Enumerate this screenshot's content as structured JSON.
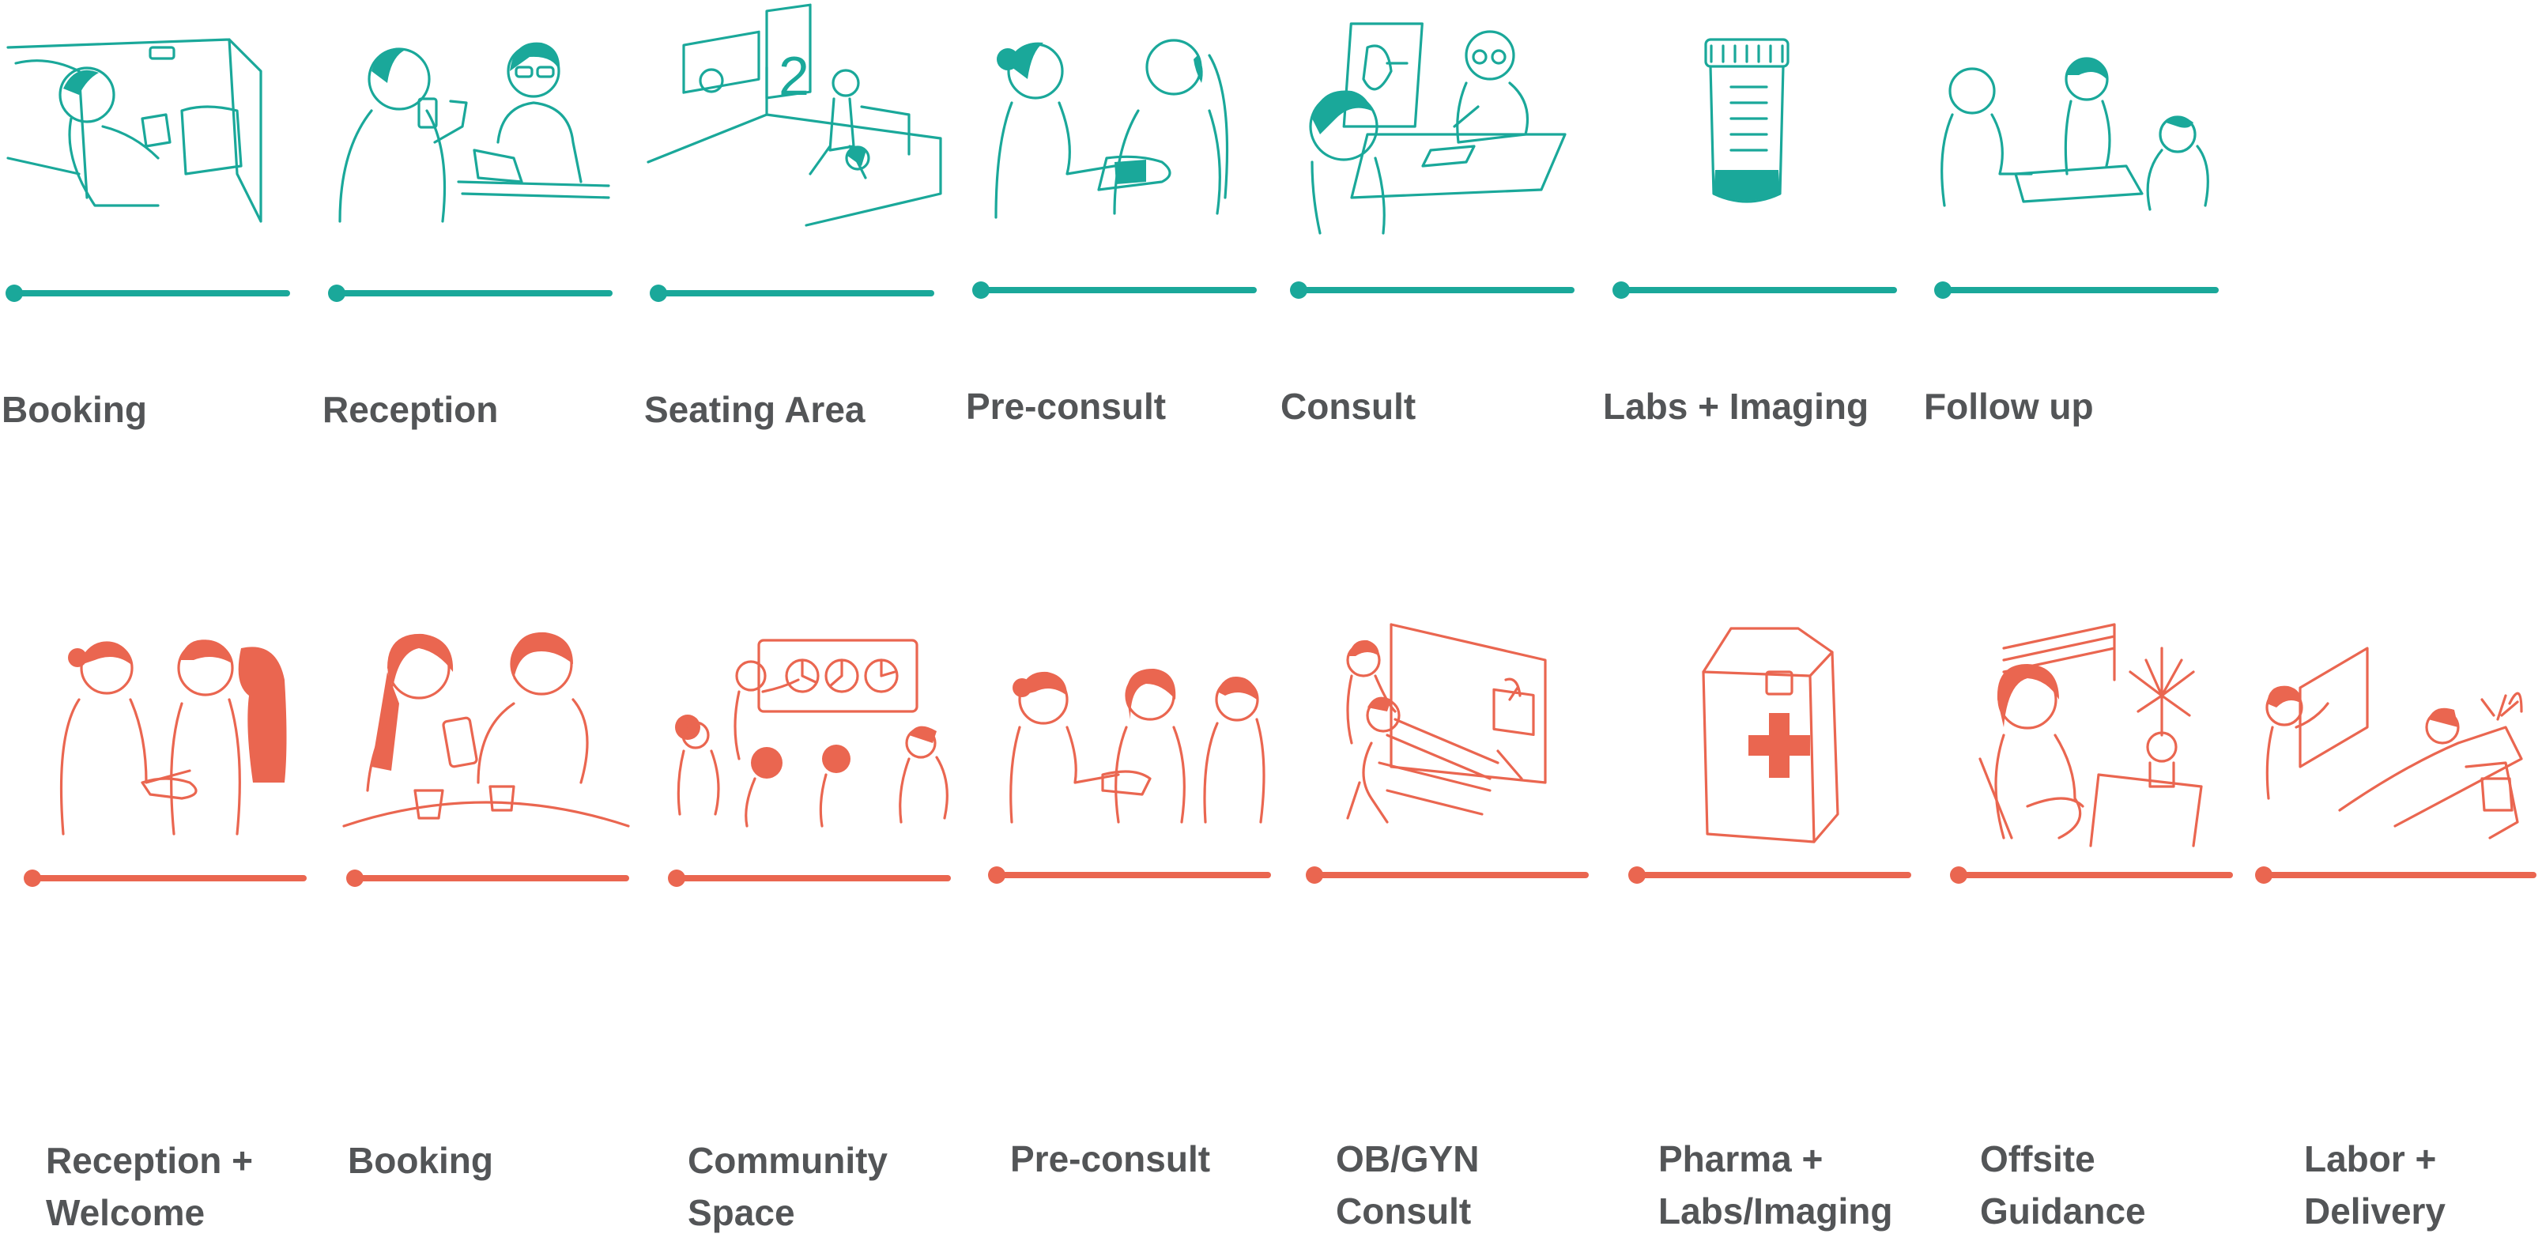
{
  "colors": {
    "top_journey": "#1aa89a",
    "bottom_journey": "#ea6650",
    "label_text": "#535557"
  },
  "top_journey": {
    "steps": [
      {
        "label": "Booking",
        "icon": "car-phone-booking-icon"
      },
      {
        "label": "Reception",
        "icon": "reception-desk-icon"
      },
      {
        "label": "Seating Area",
        "icon": "waiting-room-icon"
      },
      {
        "label": "Pre-consult",
        "icon": "nurse-blood-pressure-icon"
      },
      {
        "label": "Consult",
        "icon": "doctor-consult-icon"
      },
      {
        "label": "Labs + Imaging",
        "icon": "specimen-jar-icon"
      },
      {
        "label": "Follow up",
        "icon": "follow-up-meeting-icon"
      }
    ]
  },
  "bottom_journey": {
    "steps": [
      {
        "label": "Reception +\nWelcome",
        "icon": "welcome-greeting-icon"
      },
      {
        "label": "Booking",
        "icon": "booking-conversation-icon"
      },
      {
        "label": "Community\nSpace",
        "icon": "community-class-icon"
      },
      {
        "label": "Pre-consult",
        "icon": "nurse-checkup-icon"
      },
      {
        "label": "OB/GYN\nConsult",
        "icon": "ultrasound-consult-icon"
      },
      {
        "label": "Pharma +\nLabs/Imaging",
        "icon": "pharmacy-bag-icon"
      },
      {
        "label": "Offsite\nGuidance",
        "icon": "home-rest-icon"
      },
      {
        "label": "Labor +\nDelivery",
        "icon": "hospital-bed-icon"
      }
    ]
  }
}
